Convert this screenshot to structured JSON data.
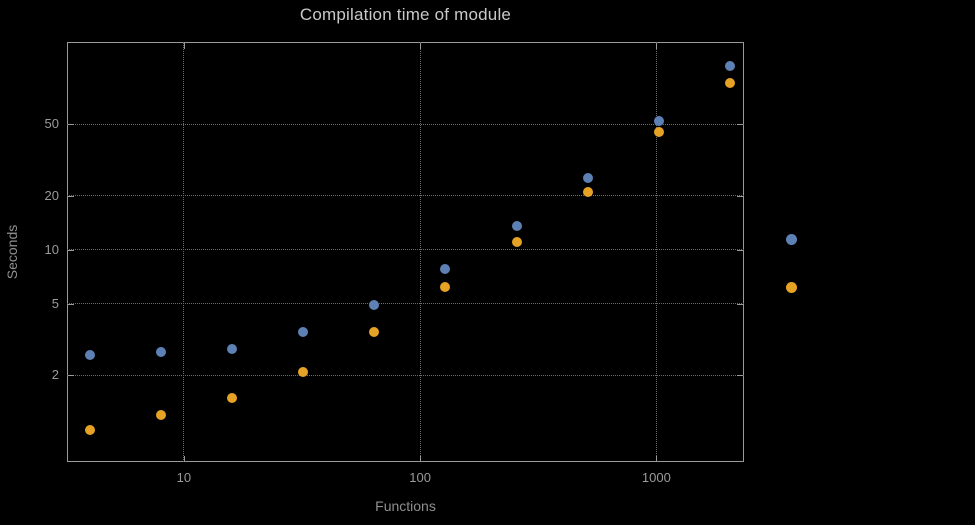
{
  "colors": {
    "background": "#000000",
    "frame": "#9a9a9a",
    "grid": "#6b6b6b",
    "title": "#c9c9c9",
    "tick_labels": "#9a9a9a",
    "axis_labels": "#8f8f8f",
    "series_blue": "#5e81b5",
    "series_orange": "#e5a224"
  },
  "chart_data": {
    "type": "scatter",
    "title": "Compilation time of module",
    "xlabel": "Functions",
    "ylabel": "Seconds",
    "x_scale": "log",
    "y_scale": "log",
    "grid": true,
    "x": [
      4,
      8,
      16,
      32,
      64,
      128,
      256,
      512,
      1024,
      2048
    ],
    "series": [
      {
        "name": "blue",
        "color": "#5e81b5",
        "values": [
          2.6,
          2.7,
          2.8,
          3.5,
          4.9,
          7.8,
          13.5,
          25,
          52,
          105
        ]
      },
      {
        "name": "orange",
        "color": "#e5a224",
        "values": [
          1.0,
          1.2,
          1.5,
          2.1,
          3.5,
          6.2,
          11,
          21,
          45,
          85
        ]
      }
    ],
    "x_ticks": [
      "10",
      "100",
      "1000"
    ],
    "y_ticks": [
      "2",
      "5",
      "10",
      "20",
      "50"
    ],
    "xlim": [
      3.2,
      2350
    ],
    "ylim": [
      0.66,
      143
    ],
    "legend": {
      "position": "right-outside",
      "marker_colors": [
        "#5e81b5",
        "#e5a224"
      ],
      "labels_visible": false
    }
  }
}
